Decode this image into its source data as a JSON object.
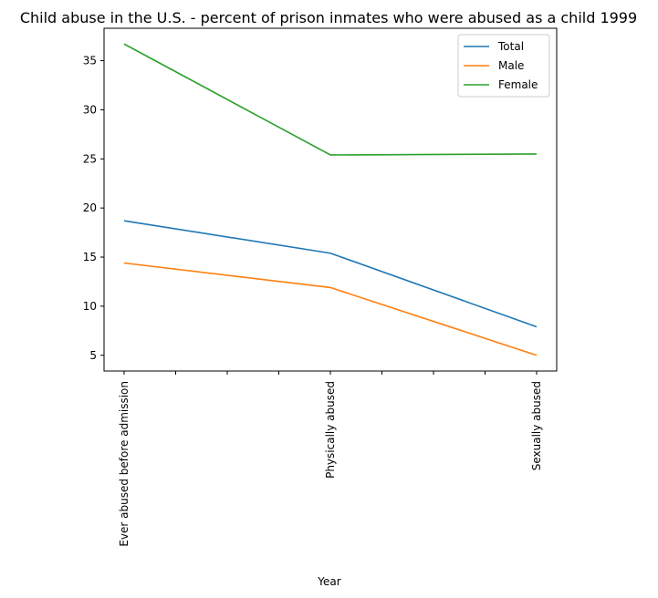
{
  "chart_data": {
    "type": "line",
    "title": "Child abuse in the U.S. - percent of prison inmates who were abused as a child 1999",
    "xlabel": "Year",
    "ylabel": "",
    "categories": [
      "Ever abused before admission",
      "Physically abused",
      "Sexually abused"
    ],
    "series": [
      {
        "name": "Total",
        "color": "#1f77b4",
        "values": [
          18.7,
          15.4,
          7.9
        ]
      },
      {
        "name": "Male",
        "color": "#ff7f0e",
        "values": [
          14.4,
          11.9,
          5.0
        ]
      },
      {
        "name": "Female",
        "color": "#2ca02c",
        "values": [
          36.7,
          25.4,
          25.5
        ]
      }
    ],
    "yticks": [
      5,
      10,
      15,
      20,
      25,
      30,
      35
    ],
    "ylim": [
      3.4,
      38.3
    ],
    "minor_x_ticks_between_categories": 3,
    "legend_position": "upper right",
    "grid": false
  }
}
